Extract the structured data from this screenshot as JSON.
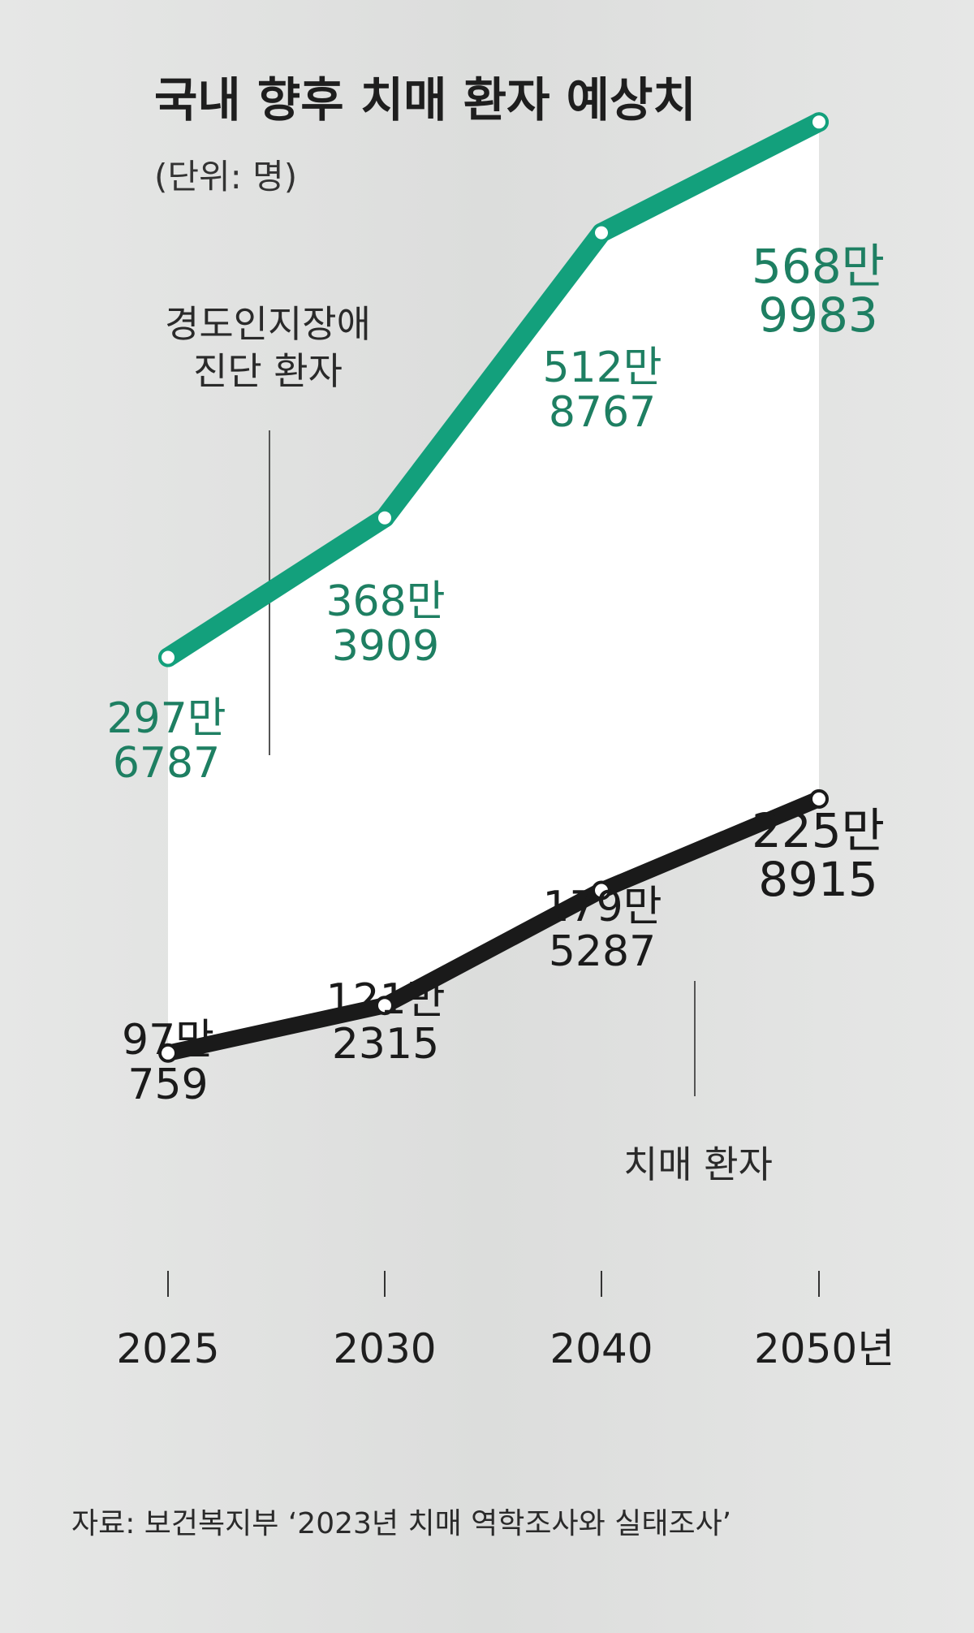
{
  "chart_data": {
    "type": "line",
    "title": "국내 향후 치매 환자 예상치",
    "subtitle": "(단위: 명)",
    "categories": [
      "2025",
      "2030",
      "2040",
      "2050년"
    ],
    "series": [
      {
        "name": "경도인지장애 진단 환자",
        "name_lines": [
          "경도인지장애",
          "진단 환자"
        ],
        "color": "#13a07c",
        "label_color": "#1e7f62",
        "values": [
          2976787,
          3683909,
          5128767,
          5689983
        ],
        "labels": [
          [
            "297만",
            "6787"
          ],
          [
            "368만",
            "3909"
          ],
          [
            "512만",
            "8767"
          ],
          [
            "568만",
            "9983"
          ]
        ]
      },
      {
        "name": "치매 환자",
        "name_lines": [
          "치매 환자"
        ],
        "color": "#1a1a1a",
        "label_color": "#1a1a1a",
        "values": [
          970759,
          1212315,
          1795287,
          2258915
        ],
        "labels": [
          [
            "97만",
            "759"
          ],
          [
            "121만",
            "2315"
          ],
          [
            "179만",
            "5287"
          ],
          [
            "225만",
            "8915"
          ]
        ]
      }
    ],
    "source": "자료: 보건복지부 ‘2023년 치매 역학조사와 실태조사’"
  }
}
